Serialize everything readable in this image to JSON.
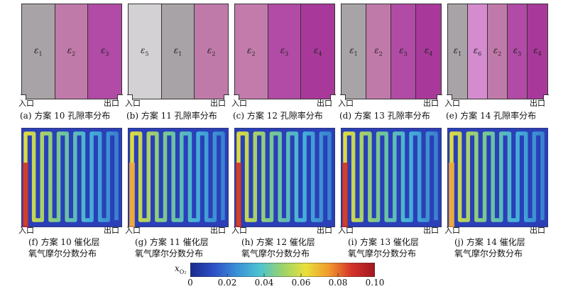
{
  "top_panels": [
    {
      "caption": "(a) 方案 10 孔隙率分布",
      "inlet": "入口",
      "outlet": "出口",
      "strips": [
        {
          "label": "ε",
          "sub": "1",
          "color": "#a8a3a6"
        },
        {
          "label": "ε",
          "sub": "2",
          "color": "#c07aa9"
        },
        {
          "label": "ε",
          "sub": "3",
          "color": "#b14ba6"
        }
      ]
    },
    {
      "caption": "(b) 方案 11 孔隙率分布",
      "inlet": "入口",
      "outlet": "出口",
      "strips": [
        {
          "label": "ε",
          "sub": "5",
          "color": "#d3d1d4"
        },
        {
          "label": "ε",
          "sub": "1",
          "color": "#a8a3a6"
        },
        {
          "label": "ε",
          "sub": "2",
          "color": "#c07aa9"
        }
      ]
    },
    {
      "caption": "(c) 方案 12 孔隙率分布",
      "inlet": "入口",
      "outlet": "出口",
      "strips": [
        {
          "label": "ε",
          "sub": "2",
          "color": "#c27bab"
        },
        {
          "label": "ε",
          "sub": "3",
          "color": "#b14ba6"
        },
        {
          "label": "ε",
          "sub": "4",
          "color": "#a8399a"
        }
      ]
    },
    {
      "caption": "(d) 方案 13 孔隙率分布",
      "inlet": "入口",
      "outlet": "出口",
      "strips": [
        {
          "label": "ε",
          "sub": "1",
          "color": "#a8a3a6"
        },
        {
          "label": "ε",
          "sub": "2",
          "color": "#c07aa9"
        },
        {
          "label": "ε",
          "sub": "3",
          "color": "#b14ba6"
        },
        {
          "label": "ε",
          "sub": "4",
          "color": "#a8399a"
        }
      ]
    },
    {
      "caption": "(e) 方案 14 孔隙率分布",
      "inlet": "入口",
      "outlet": "出口",
      "strips": [
        {
          "label": "ε",
          "sub": "1",
          "color": "#a8a3a6"
        },
        {
          "label": "ε",
          "sub": "6",
          "color": "#d48ccf"
        },
        {
          "label": "ε",
          "sub": "2",
          "color": "#c07aa9"
        },
        {
          "label": "ε",
          "sub": "3",
          "color": "#b14ba6"
        },
        {
          "label": "ε",
          "sub": "4",
          "color": "#a8399a"
        }
      ]
    }
  ],
  "bottom_panels": [
    {
      "caption_line1": "(f) 方案 10 催化层",
      "caption_line2": "氧气摩尔分数分布",
      "inlet": "入口",
      "outlet": "出口",
      "inlet_level": 0.1
    },
    {
      "caption_line1": "(g) 方案 11 催化层",
      "caption_line2": "氧气摩尔分数分布",
      "inlet": "入口",
      "outlet": "出口",
      "inlet_level": 0.07
    },
    {
      "caption_line1": "(h) 方案 12 催化层",
      "caption_line2": "氧气摩尔分数分布",
      "inlet": "入口",
      "outlet": "出口",
      "inlet_level": 0.1
    },
    {
      "caption_line1": "(i) 方案 13 催化层",
      "caption_line2": "氧气摩尔分数分布",
      "inlet": "入口",
      "outlet": "出口",
      "inlet_level": 0.1
    },
    {
      "caption_line1": "(j) 方案 14 催化层",
      "caption_line2": "氧气摩尔分数分布",
      "inlet": "入口",
      "outlet": "出口",
      "inlet_level": 0.08
    }
  ],
  "colorbar": {
    "label": "x",
    "label_sub": "O₂",
    "ticks": [
      "0",
      "0.02",
      "0.04",
      "0.06",
      "0.08",
      "0.10"
    ],
    "range": [
      0,
      0.1
    ],
    "colors": [
      "#1a2a8c",
      "#2e4fc5",
      "#3a8fd6",
      "#4cc3d2",
      "#9bd36a",
      "#e9e03a",
      "#f19a2e",
      "#d4322a",
      "#a0171e"
    ]
  }
}
